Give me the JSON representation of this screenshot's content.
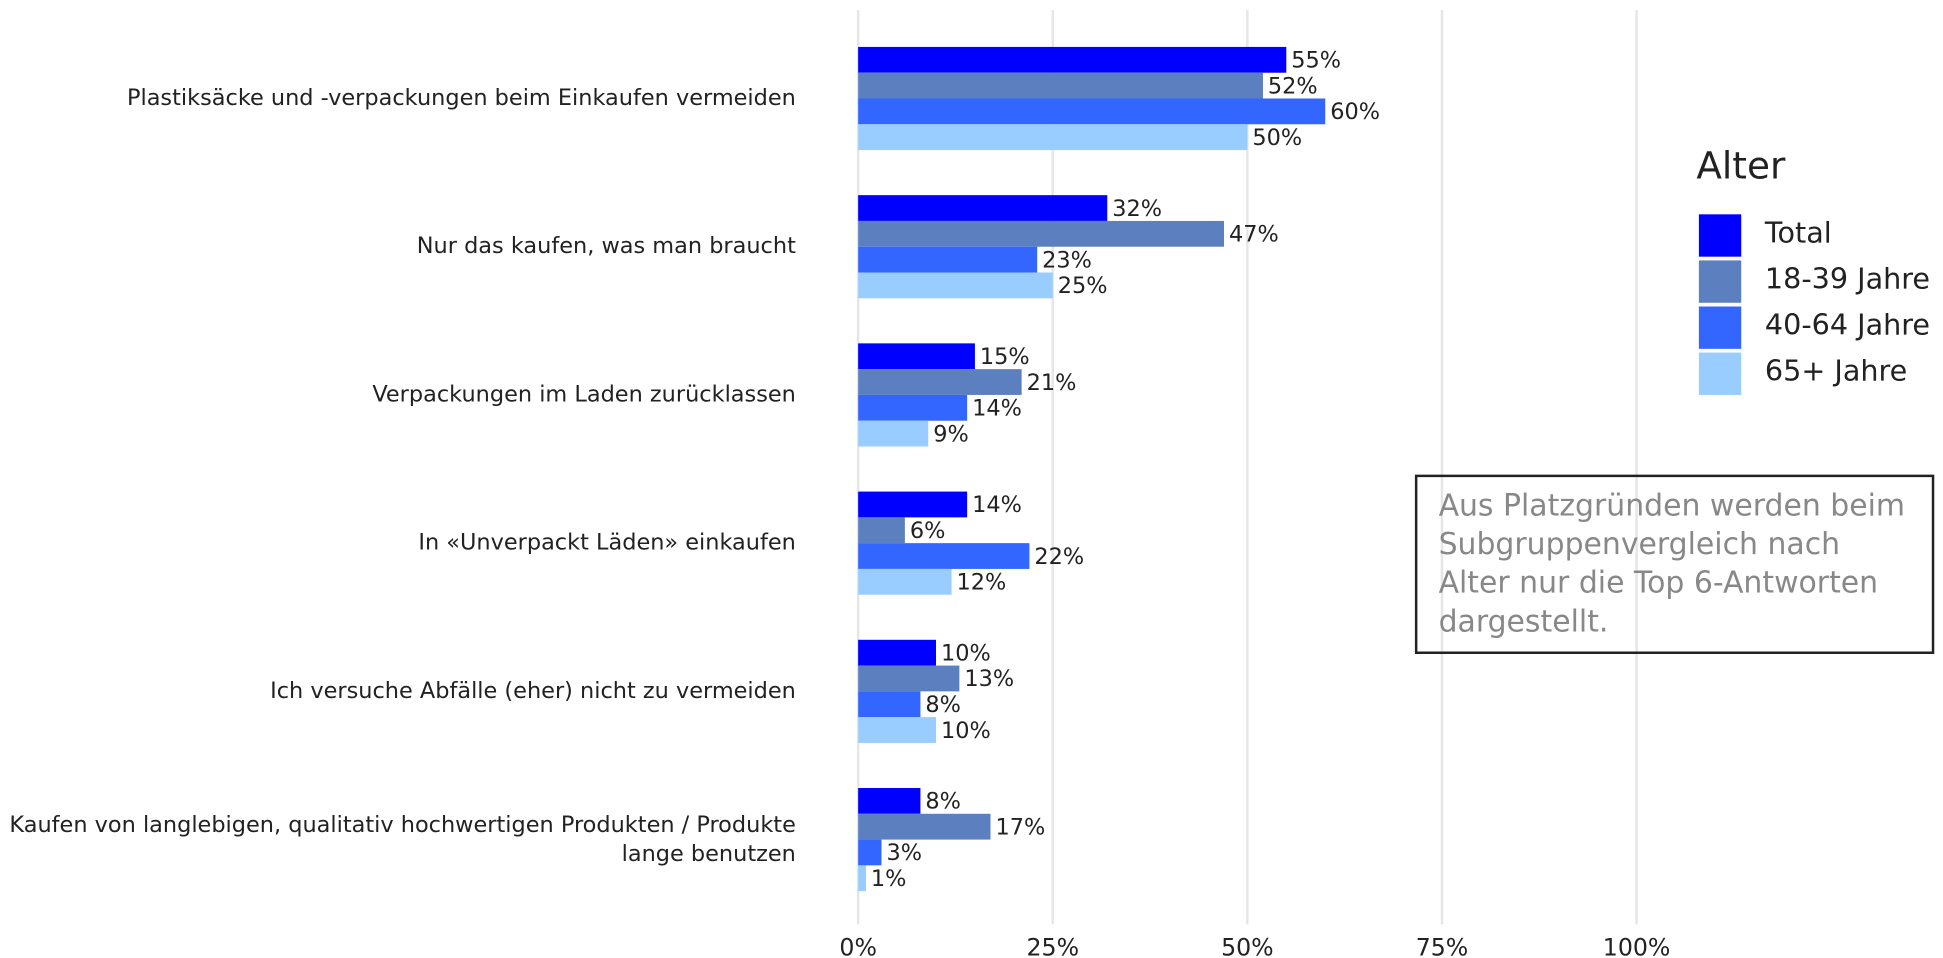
{
  "chart_data": {
    "type": "bar",
    "orientation": "horizontal",
    "categories": [
      "Plastiksäcke und -verpackungen beim Einkaufen vermeiden",
      "Nur das kaufen, was man braucht",
      "Verpackungen im Laden zurücklassen",
      "In «Unverpackt Läden» einkaufen",
      "Ich versuche Abfälle (eher) nicht zu vermeiden",
      "Kaufen von langlebigen, qualitativ hochwertigen Produkten / Produkte\nlange benutzen"
    ],
    "series": [
      {
        "name": "Total",
        "color": "#0000ff",
        "values": [
          55,
          32,
          15,
          14,
          10,
          8
        ],
        "value_labels": [
          "55%",
          "32%",
          "15%",
          "14%",
          "10%",
          "8%"
        ]
      },
      {
        "name": "18-39 Jahre",
        "color": "#5b7fbf",
        "values": [
          52,
          47,
          21,
          6,
          13,
          17
        ],
        "value_labels": [
          "52%",
          "47%",
          "21%",
          "6%",
          "13%",
          "17%"
        ]
      },
      {
        "name": "40-64 Jahre",
        "color": "#3366ff",
        "values": [
          60,
          23,
          14,
          22,
          8,
          3
        ],
        "value_labels": [
          "60%",
          "23%",
          "14%",
          "22%",
          "8%",
          "3%"
        ]
      },
      {
        "name": "65+ Jahre",
        "color": "#99ccff",
        "values": [
          50,
          25,
          9,
          12,
          10,
          1
        ],
        "value_labels": [
          "50%",
          "25%",
          "9%",
          "12%",
          "10%",
          "1%"
        ]
      }
    ],
    "xlim": [
      0,
      100
    ],
    "xticks": [
      {
        "value": 0,
        "label": "0%"
      },
      {
        "value": 25,
        "label": "25%"
      },
      {
        "value": 50,
        "label": "50%"
      },
      {
        "value": 75,
        "label": "75%"
      },
      {
        "value": 100,
        "label": "100%"
      }
    ],
    "grid": true,
    "legend_title": "Alter",
    "legend_position": "right",
    "annotation": [
      "Aus Platzgründen werden beim",
      "Subgruppenvergleich nach",
      "Alter nur die Top 6-Antworten",
      "dargestellt."
    ]
  }
}
